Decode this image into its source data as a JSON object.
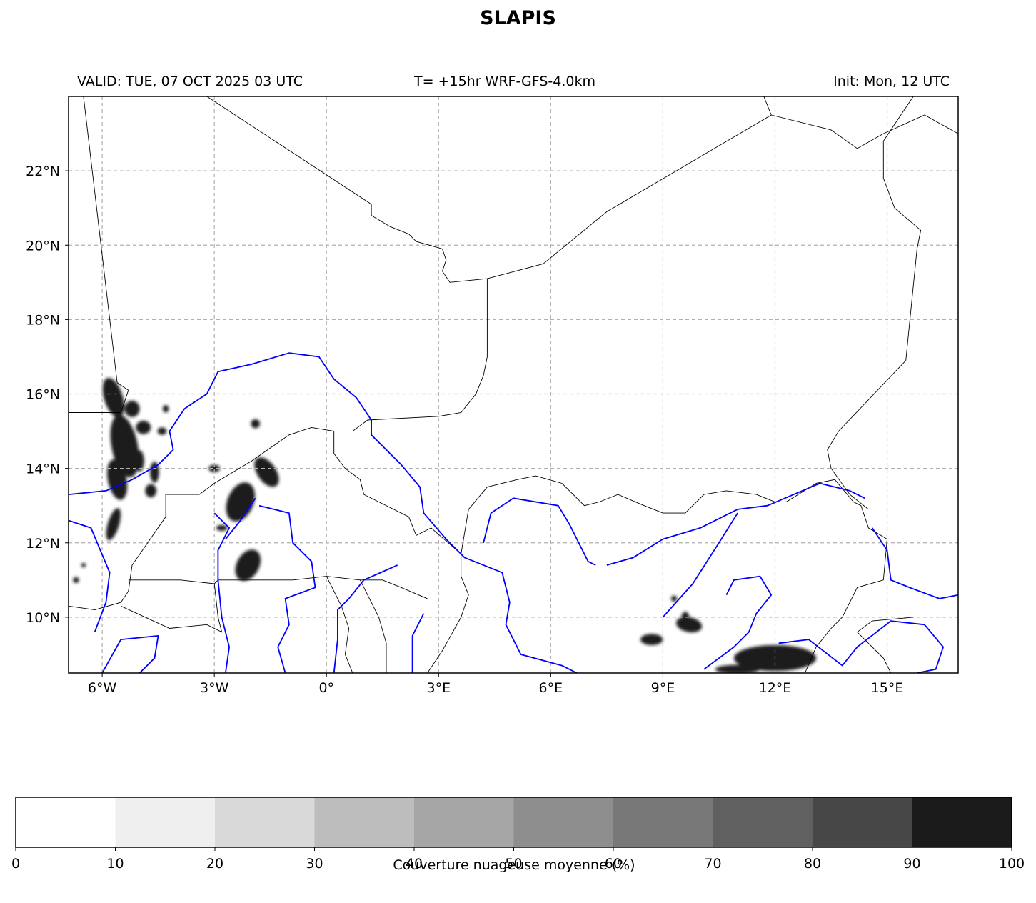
{
  "title": "SLAPIS",
  "subtitles": {
    "valid": "VALID: TUE, 07 OCT 2025 03 UTC",
    "run": "T= +15hr WRF-GFS-4.0km",
    "init": "Init: Mon, 12 UTC"
  },
  "map": {
    "lon_range": [
      -6.9,
      16.9
    ],
    "lat_range": [
      8.5,
      24.0
    ],
    "lon_ticks": [
      {
        "value": -6,
        "label": "6°W"
      },
      {
        "value": -3,
        "label": "3°W"
      },
      {
        "value": 0,
        "label": "0°"
      },
      {
        "value": 3,
        "label": "3°E"
      },
      {
        "value": 6,
        "label": "6°E"
      },
      {
        "value": 9,
        "label": "9°E"
      },
      {
        "value": 12,
        "label": "12°E"
      },
      {
        "value": 15,
        "label": "15°E"
      }
    ],
    "lat_ticks": [
      {
        "value": 22,
        "label": "22°N"
      },
      {
        "value": 20,
        "label": "20°N"
      },
      {
        "value": 18,
        "label": "18°N"
      },
      {
        "value": 16,
        "label": "16°N"
      },
      {
        "value": 14,
        "label": "14°N"
      },
      {
        "value": 12,
        "label": "12°N"
      },
      {
        "value": 10,
        "label": "10°N"
      }
    ],
    "gridlines": true,
    "colors": {
      "borders": "#000000",
      "rivers": "#0000ff",
      "grid": "#b0b0b0",
      "cloud": "#1a1a1a"
    },
    "borders": [
      [
        [
          -6.5,
          24.0
        ],
        [
          -5.6,
          16.3
        ],
        [
          -5.3,
          16.1
        ],
        [
          -5.5,
          15.5
        ],
        [
          -6.9,
          15.5
        ]
      ],
      [
        [
          -3.2,
          24.0
        ],
        [
          1.2,
          21.1
        ],
        [
          1.2,
          20.8
        ],
        [
          1.7,
          20.5
        ],
        [
          2.2,
          20.3
        ],
        [
          2.4,
          20.1
        ],
        [
          3.1,
          19.9
        ],
        [
          3.2,
          19.6
        ],
        [
          3.1,
          19.3
        ],
        [
          3.3,
          19.0
        ],
        [
          4.3,
          19.1
        ],
        [
          5.8,
          19.5
        ],
        [
          7.5,
          20.9
        ],
        [
          11.9,
          23.5
        ],
        [
          11.7,
          24.0
        ]
      ],
      [
        [
          4.3,
          19.1
        ],
        [
          4.3,
          17.0
        ],
        [
          4.2,
          16.5
        ],
        [
          4.0,
          16.0
        ],
        [
          3.6,
          15.5
        ],
        [
          3.0,
          15.4
        ],
        [
          1.1,
          15.3
        ],
        [
          0.7,
          15.0
        ],
        [
          0.2,
          15.0
        ],
        [
          -0.4,
          15.1
        ],
        [
          -1.0,
          14.9
        ],
        [
          -2.0,
          14.2
        ],
        [
          -3.0,
          13.6
        ],
        [
          -3.4,
          13.3
        ],
        [
          -4.3,
          13.3
        ],
        [
          -4.3,
          12.7
        ],
        [
          -5.2,
          11.4
        ],
        [
          -5.3,
          10.7
        ],
        [
          -5.5,
          10.4
        ],
        [
          -6.2,
          10.2
        ],
        [
          -6.9,
          10.3
        ]
      ],
      [
        [
          0.2,
          15.0
        ],
        [
          0.2,
          14.4
        ],
        [
          0.5,
          14.0
        ],
        [
          0.9,
          13.7
        ],
        [
          1.0,
          13.3
        ],
        [
          1.4,
          13.1
        ],
        [
          2.2,
          12.7
        ],
        [
          2.4,
          12.2
        ],
        [
          2.8,
          12.4
        ],
        [
          3.6,
          11.7
        ],
        [
          3.6,
          11.1
        ],
        [
          3.8,
          10.6
        ],
        [
          3.6,
          10.0
        ],
        [
          3.1,
          9.1
        ],
        [
          2.7,
          8.5
        ]
      ],
      [
        [
          -5.3,
          11.0
        ],
        [
          -3.9,
          11.0
        ],
        [
          -3.0,
          10.9
        ],
        [
          -2.9,
          11.0
        ],
        [
          -0.9,
          11.0
        ],
        [
          0.0,
          11.1
        ],
        [
          0.9,
          11.0
        ],
        [
          1.5,
          11.0
        ],
        [
          2.0,
          10.8
        ],
        [
          2.7,
          10.5
        ]
      ],
      [
        [
          -3.0,
          10.9
        ],
        [
          -2.9,
          10.0
        ],
        [
          -2.8,
          9.6
        ],
        [
          -3.2,
          9.8
        ],
        [
          -4.2,
          9.7
        ],
        [
          -5.5,
          10.3
        ]
      ],
      [
        [
          0.0,
          11.1
        ],
        [
          0.4,
          10.3
        ],
        [
          0.6,
          9.7
        ],
        [
          0.5,
          9.0
        ],
        [
          0.7,
          8.5
        ]
      ],
      [
        [
          0.9,
          11.0
        ],
        [
          1.4,
          10.0
        ],
        [
          1.6,
          9.3
        ],
        [
          1.6,
          8.5
        ]
      ],
      [
        [
          3.6,
          11.7
        ],
        [
          3.8,
          12.9
        ],
        [
          4.3,
          13.5
        ],
        [
          5.1,
          13.7
        ],
        [
          5.6,
          13.8
        ],
        [
          6.3,
          13.6
        ],
        [
          6.9,
          13.0
        ],
        [
          7.3,
          13.1
        ],
        [
          7.8,
          13.3
        ],
        [
          8.5,
          13.0
        ],
        [
          9.0,
          12.8
        ],
        [
          9.6,
          12.8
        ],
        [
          10.1,
          13.3
        ],
        [
          10.7,
          13.4
        ],
        [
          11.5,
          13.3
        ],
        [
          12.0,
          13.1
        ],
        [
          12.3,
          13.1
        ],
        [
          13.1,
          13.6
        ],
        [
          13.6,
          13.7
        ],
        [
          14.1,
          13.1
        ],
        [
          14.3,
          13.0
        ],
        [
          14.5,
          12.4
        ],
        [
          15.0,
          12.1
        ],
        [
          14.9,
          11.0
        ],
        [
          14.2,
          10.8
        ],
        [
          13.8,
          10.0
        ],
        [
          13.5,
          9.7
        ],
        [
          13.1,
          9.2
        ],
        [
          12.8,
          8.5
        ]
      ],
      [
        [
          15.7,
          24.0
        ],
        [
          14.9,
          22.8
        ],
        [
          14.9,
          21.8
        ],
        [
          15.2,
          21.0
        ],
        [
          15.9,
          20.4
        ],
        [
          15.8,
          19.9
        ],
        [
          15.5,
          16.9
        ],
        [
          13.7,
          15.0
        ],
        [
          13.4,
          14.5
        ],
        [
          13.5,
          14.0
        ],
        [
          14.0,
          13.3
        ],
        [
          14.5,
          12.9
        ]
      ],
      [
        [
          11.9,
          23.5
        ],
        [
          13.5,
          23.1
        ],
        [
          14.2,
          22.6
        ],
        [
          14.9,
          23.0
        ],
        [
          16.0,
          23.5
        ],
        [
          16.9,
          23.0
        ]
      ],
      [
        [
          15.7,
          10.0
        ],
        [
          14.6,
          9.9
        ],
        [
          14.2,
          9.6
        ],
        [
          14.9,
          8.9
        ],
        [
          15.1,
          8.5
        ]
      ]
    ],
    "rivers": [
      [
        [
          -6.9,
          13.3
        ],
        [
          -5.9,
          13.4
        ],
        [
          -5.2,
          13.7
        ],
        [
          -4.5,
          14.1
        ],
        [
          -4.1,
          14.5
        ],
        [
          -4.2,
          15.0
        ],
        [
          -3.8,
          15.6
        ],
        [
          -3.2,
          16.0
        ],
        [
          -2.9,
          16.6
        ],
        [
          -2.0,
          16.8
        ],
        [
          -1.0,
          17.1
        ],
        [
          -0.2,
          17.0
        ],
        [
          0.2,
          16.4
        ],
        [
          0.8,
          15.9
        ],
        [
          1.2,
          15.3
        ],
        [
          1.2,
          14.9
        ],
        [
          2.0,
          14.1
        ],
        [
          2.5,
          13.5
        ],
        [
          2.6,
          12.8
        ],
        [
          3.2,
          12.1
        ],
        [
          3.7,
          11.6
        ],
        [
          4.7,
          11.2
        ],
        [
          4.9,
          10.4
        ],
        [
          4.8,
          9.8
        ],
        [
          5.2,
          9.0
        ],
        [
          6.3,
          8.7
        ],
        [
          6.7,
          8.5
        ]
      ],
      [
        [
          -6.9,
          12.6
        ],
        [
          -6.3,
          12.4
        ],
        [
          -5.8,
          11.2
        ],
        [
          -5.9,
          10.4
        ],
        [
          -6.2,
          9.6
        ]
      ],
      [
        [
          -3.0,
          12.8
        ],
        [
          -2.6,
          12.4
        ],
        [
          -2.9,
          11.8
        ],
        [
          -2.9,
          11.0
        ],
        [
          -2.8,
          10.0
        ],
        [
          -2.6,
          9.2
        ],
        [
          -2.7,
          8.5
        ]
      ],
      [
        [
          -1.8,
          13.0
        ],
        [
          -1.0,
          12.8
        ],
        [
          -0.9,
          12.0
        ],
        [
          -0.4,
          11.5
        ],
        [
          -0.3,
          10.8
        ],
        [
          -1.1,
          10.5
        ],
        [
          -1.0,
          9.8
        ],
        [
          -1.3,
          9.2
        ],
        [
          -1.1,
          8.5
        ]
      ],
      [
        [
          -1.9,
          13.2
        ],
        [
          -2.3,
          12.6
        ],
        [
          -2.7,
          12.1
        ]
      ],
      [
        [
          1.9,
          11.4
        ],
        [
          1.0,
          11.0
        ],
        [
          0.6,
          10.5
        ],
        [
          0.3,
          10.2
        ],
        [
          0.3,
          9.4
        ],
        [
          0.2,
          8.5
        ]
      ],
      [
        [
          2.6,
          10.1
        ],
        [
          2.3,
          9.5
        ],
        [
          2.3,
          8.5
        ]
      ],
      [
        [
          4.2,
          12.0
        ],
        [
          4.4,
          12.8
        ],
        [
          5.0,
          13.2
        ],
        [
          6.2,
          13.0
        ],
        [
          6.5,
          12.5
        ],
        [
          7.0,
          11.5
        ],
        [
          7.2,
          11.4
        ]
      ],
      [
        [
          7.5,
          11.4
        ],
        [
          8.2,
          11.6
        ],
        [
          9.0,
          12.1
        ],
        [
          10.0,
          12.4
        ],
        [
          11.0,
          12.9
        ],
        [
          11.8,
          13.0
        ],
        [
          12.5,
          13.3
        ],
        [
          13.2,
          13.6
        ],
        [
          14.0,
          13.4
        ],
        [
          14.4,
          13.2
        ]
      ],
      [
        [
          9.0,
          10.0
        ],
        [
          9.8,
          10.9
        ],
        [
          10.5,
          12.0
        ],
        [
          11.0,
          12.8
        ]
      ],
      [
        [
          10.7,
          10.6
        ],
        [
          10.9,
          11.0
        ],
        [
          11.6,
          11.1
        ],
        [
          11.9,
          10.6
        ],
        [
          11.5,
          10.1
        ],
        [
          11.3,
          9.6
        ],
        [
          10.9,
          9.2
        ],
        [
          10.1,
          8.6
        ]
      ],
      [
        [
          14.6,
          12.4
        ],
        [
          15.0,
          11.8
        ],
        [
          15.1,
          11.0
        ],
        [
          15.6,
          10.8
        ],
        [
          16.4,
          10.5
        ],
        [
          16.9,
          10.6
        ]
      ],
      [
        [
          12.1,
          9.3
        ],
        [
          12.9,
          9.4
        ],
        [
          13.8,
          8.7
        ],
        [
          14.2,
          9.2
        ],
        [
          15.1,
          9.9
        ],
        [
          16.0,
          9.8
        ],
        [
          16.5,
          9.2
        ],
        [
          16.3,
          8.6
        ],
        [
          15.8,
          8.5
        ]
      ],
      [
        [
          -6.0,
          8.5
        ],
        [
          -5.5,
          9.4
        ],
        [
          -4.5,
          9.5
        ],
        [
          -4.6,
          8.9
        ],
        [
          -5.0,
          8.5
        ]
      ]
    ],
    "cloud_patches": [
      [
        -5.7,
        15.9,
        0.25,
        0.55,
        -0.3
      ],
      [
        -5.4,
        14.6,
        0.35,
        0.85,
        -0.2
      ],
      [
        -5.6,
        13.7,
        0.25,
        0.55,
        -0.2
      ],
      [
        -5.2,
        15.6,
        0.2,
        0.22,
        0
      ],
      [
        -4.9,
        15.1,
        0.2,
        0.18,
        0
      ],
      [
        -4.6,
        13.9,
        0.12,
        0.28,
        0
      ],
      [
        -4.7,
        13.4,
        0.15,
        0.18,
        0
      ],
      [
        -5.7,
        12.5,
        0.15,
        0.45,
        0.3
      ],
      [
        -4.4,
        15.0,
        0.12,
        0.1,
        0
      ],
      [
        -2.3,
        13.1,
        0.35,
        0.55,
        0.4
      ],
      [
        -1.6,
        13.9,
        0.25,
        0.45,
        -0.6
      ],
      [
        -2.1,
        11.4,
        0.3,
        0.45,
        0.5
      ],
      [
        -3.0,
        14.0,
        0.15,
        0.1,
        0
      ],
      [
        -1.9,
        15.2,
        0.12,
        0.12,
        0
      ],
      [
        -2.8,
        12.4,
        0.15,
        0.08,
        0
      ],
      [
        9.7,
        9.8,
        0.35,
        0.2,
        0.2
      ],
      [
        9.6,
        10.0,
        0.1,
        0.15,
        0
      ],
      [
        8.7,
        9.4,
        0.3,
        0.15,
        0
      ],
      [
        12.0,
        8.9,
        1.1,
        0.35,
        0
      ],
      [
        11.0,
        8.6,
        0.6,
        0.12,
        0
      ],
      [
        9.3,
        10.5,
        0.08,
        0.08,
        0
      ],
      [
        -5.0,
        14.2,
        0.12,
        0.28,
        0
      ],
      [
        -4.3,
        15.6,
        0.08,
        0.1,
        0
      ],
      [
        -6.7,
        11.0,
        0.08,
        0.08,
        0
      ],
      [
        -6.5,
        11.4,
        0.06,
        0.06,
        0
      ]
    ]
  },
  "colorbar": {
    "label": "Couverture nuageuse moyenne (%)",
    "boundaries": [
      "0",
      "10",
      "20",
      "30",
      "40",
      "50",
      "60",
      "70",
      "80",
      "90",
      "100"
    ],
    "colors": [
      "#ffffff",
      "#efefef",
      "#d9d9d9",
      "#bdbdbd",
      "#a6a6a6",
      "#8e8e8e",
      "#787878",
      "#606060",
      "#474747",
      "#1b1b1b"
    ]
  }
}
